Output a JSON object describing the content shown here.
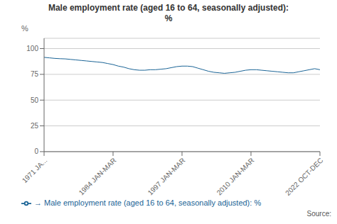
{
  "chart_data": {
    "type": "line",
    "title": "Male employment rate (aged 16 to 64, seasonally adjusted):\n%",
    "ylabel": "%",
    "annotations": [
      "Source:"
    ],
    "x": [
      0,
      1,
      2,
      3,
      4,
      5,
      6,
      7,
      8,
      9,
      10,
      11,
      12,
      13,
      14,
      15,
      16,
      17,
      18,
      19,
      20,
      21,
      22,
      23,
      24,
      25,
      26,
      27,
      28,
      29,
      30,
      31,
      32,
      33,
      34,
      35,
      36,
      37,
      38,
      39,
      40,
      41,
      42,
      43,
      44,
      45,
      46,
      47,
      48,
      49,
      50,
      51,
      52
    ],
    "series": [
      {
        "name": "→ Male employment rate (aged 16 to 64, seasonally adjusted): %",
        "color": "#1a6496",
        "values": [
          91.5,
          91.0,
          90.5,
          90.2,
          90.0,
          89.5,
          89.0,
          88.5,
          88.0,
          87.5,
          87.0,
          86.5,
          85.5,
          84.5,
          83.0,
          82.0,
          80.5,
          79.5,
          79.0,
          79.0,
          79.5,
          79.5,
          80.0,
          80.5,
          81.5,
          82.5,
          83.0,
          83.0,
          82.5,
          81.0,
          79.5,
          78.0,
          77.0,
          76.5,
          76.0,
          76.5,
          77.0,
          78.0,
          79.0,
          79.5,
          79.5,
          79.0,
          78.5,
          78.0,
          77.5,
          77.0,
          76.5,
          76.5,
          77.5,
          78.5,
          79.5,
          80.5,
          79.5
        ]
      }
    ],
    "xlim": [
      0,
      52
    ],
    "xticks": [
      {
        "value": 0,
        "label": "1971 JA..."
      },
      {
        "value": 13,
        "label": "1984 JAN-MAR"
      },
      {
        "value": 26,
        "label": "1997 JAN-MAR"
      },
      {
        "value": 39,
        "label": "2010 JAN-MAR"
      },
      {
        "value": 52,
        "label": "2022 OCT-DEC"
      }
    ],
    "ylim": [
      0,
      110
    ],
    "yticks": [
      0,
      25,
      50,
      75,
      100
    ],
    "grid": true,
    "legend": "bottom"
  }
}
